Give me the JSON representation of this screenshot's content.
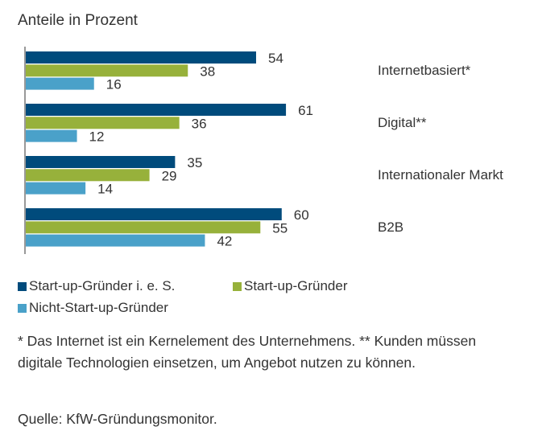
{
  "chart_data": {
    "type": "bar",
    "orientation": "horizontal",
    "subtitle": "Anteile in Prozent",
    "categories": [
      "Internetbasiert*",
      "Digital**",
      "Internationaler Markt",
      "B2B"
    ],
    "series": [
      {
        "name": "Start-up-Gründer i. e. S.",
        "color": "#004b7c",
        "values": [
          54,
          61,
          35,
          60
        ]
      },
      {
        "name": "Start-up-Gründer",
        "color": "#97b13b",
        "values": [
          38,
          36,
          29,
          55
        ]
      },
      {
        "name": "Nicht-Start-up-Gründer",
        "color": "#4aa1c9",
        "values": [
          16,
          12,
          14,
          42
        ]
      }
    ],
    "xlim": [
      0,
      100
    ],
    "grid": false,
    "legend_position": "bottom",
    "data_labels": true
  },
  "footnote": "* Das Internet ist ein Kernelement des Unternehmens. ** Kunden müssen digitale Technologien einsetzen, um Angebot nutzen zu können.",
  "source": "Quelle: KfW-Gründungsmonitor."
}
